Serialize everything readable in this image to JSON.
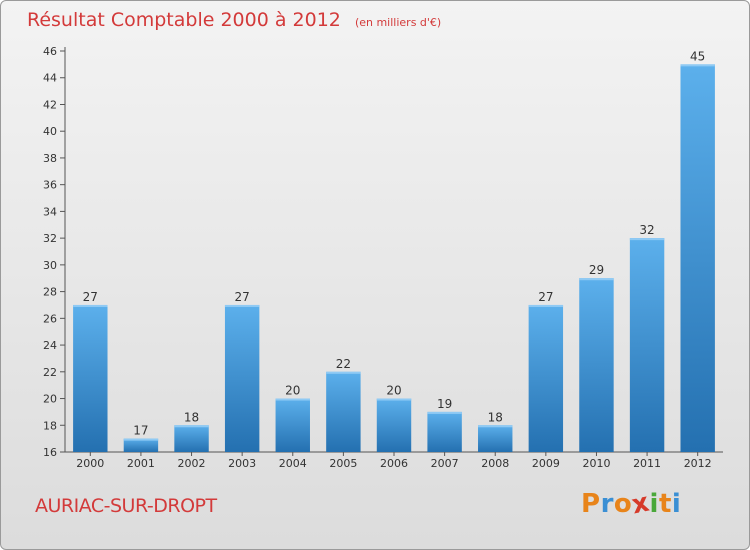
{
  "chart_data": {
    "type": "bar",
    "title": "Résultat Comptable 2000 à 2012",
    "subtitle": "(en milliers d'€)",
    "categories": [
      "2000",
      "2001",
      "2002",
      "2003",
      "2004",
      "2005",
      "2006",
      "2007",
      "2008",
      "2009",
      "2010",
      "2011",
      "2012"
    ],
    "values": [
      27,
      17,
      18,
      27,
      20,
      22,
      20,
      19,
      18,
      27,
      29,
      32,
      45
    ],
    "ylim": [
      16,
      46
    ],
    "yticks": [
      16,
      18,
      20,
      22,
      24,
      26,
      28,
      30,
      32,
      34,
      36,
      38,
      40,
      42,
      44,
      46
    ],
    "grid": false,
    "xlabel": "",
    "ylabel": "",
    "bar_color": "#3f95d8",
    "bar_color_dark": "#2a6fae"
  },
  "footer": {
    "commune": "AURIAC-SUR-DROPT",
    "logo_letters": [
      "P",
      "r",
      "o",
      "x",
      "i",
      "t",
      "i"
    ],
    "logo_colors": [
      "#e8841a",
      "#3a8fd4",
      "#e8841a",
      "#d63a2a",
      "#4aa83a",
      "#e8841a",
      "#3a8fd4"
    ]
  }
}
